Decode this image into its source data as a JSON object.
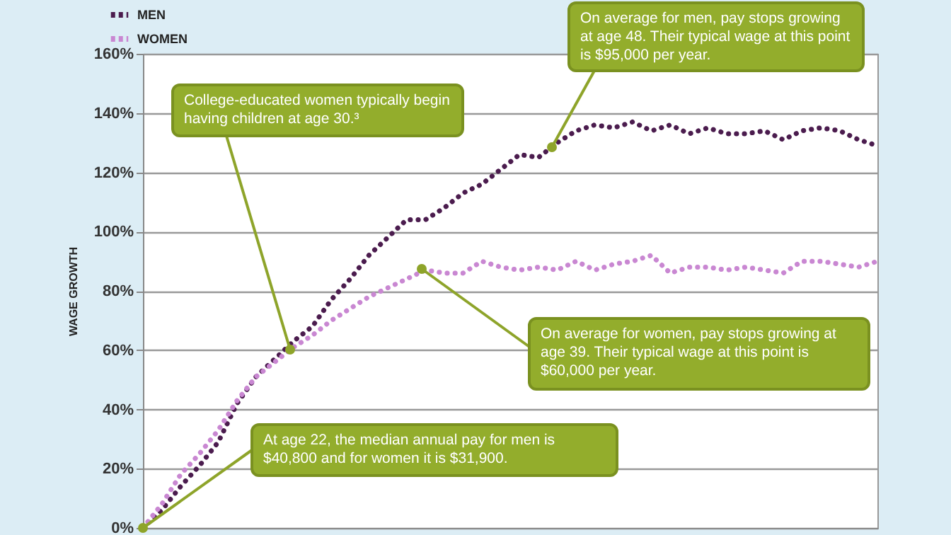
{
  "chart_data": {
    "type": "line",
    "ylabel": "WAGE GROWTH",
    "categories": [
      null,
      null,
      null,
      null,
      null,
      null,
      null,
      null,
      null,
      null,
      null,
      null,
      null,
      null,
      null,
      null,
      null,
      null,
      null,
      null,
      null,
      null,
      null,
      null,
      null,
      null,
      null,
      null,
      null,
      null,
      null,
      null,
      null,
      null,
      null,
      null,
      null,
      null,
      null,
      null
    ],
    "series": [
      {
        "name": "MEN",
        "color": "#4b1c4e",
        "values": [
          0,
          6,
          14,
          21,
          29,
          42,
          51,
          57,
          63,
          68,
          77,
          84,
          92,
          98,
          104,
          104,
          108,
          113,
          116,
          121,
          126,
          125,
          130,
          134,
          136,
          135,
          137,
          134,
          136,
          133,
          135,
          133,
          133,
          134,
          131,
          134,
          135,
          134,
          131,
          129
        ]
      },
      {
        "name": "WOMEN",
        "color": "#c987d2",
        "values": [
          0,
          8,
          18,
          25,
          33,
          43,
          51,
          56,
          61,
          65,
          70,
          74,
          78,
          81,
          84,
          87,
          86,
          86,
          90,
          88,
          87,
          88,
          87,
          90,
          87,
          89,
          90,
          92,
          86,
          88,
          88,
          87,
          88,
          87,
          86,
          90,
          90,
          89,
          88,
          90
        ]
      }
    ],
    "ylim": [
      0,
      160
    ],
    "yticks": [
      {
        "value": 0,
        "label": "0%"
      },
      {
        "value": 20,
        "label": "20%"
      },
      {
        "value": 40,
        "label": "40%"
      },
      {
        "value": 60,
        "label": "60%"
      },
      {
        "value": 80,
        "label": "80%"
      },
      {
        "value": 100,
        "label": "100%"
      },
      {
        "value": 120,
        "label": "120%"
      },
      {
        "value": 140,
        "label": "140%"
      },
      {
        "value": 160,
        "label": "160%"
      }
    ],
    "tick_labels": "y",
    "grid": "y",
    "legend": "top left",
    "line_style": "dotted",
    "marker": "none",
    "annotations": [
      "On average for men, pay stops growing at age 48. Their typical wage at this point is $95,000 per year.",
      "College-educated women typically begin having children at age 30.³",
      "On average for women, pay stops growing at age 39. Their typical wage at this point is $60,000 per year.",
      "At age 22, the median annual pay for men is $40,800 and for women it is $31,900."
    ]
  }
}
